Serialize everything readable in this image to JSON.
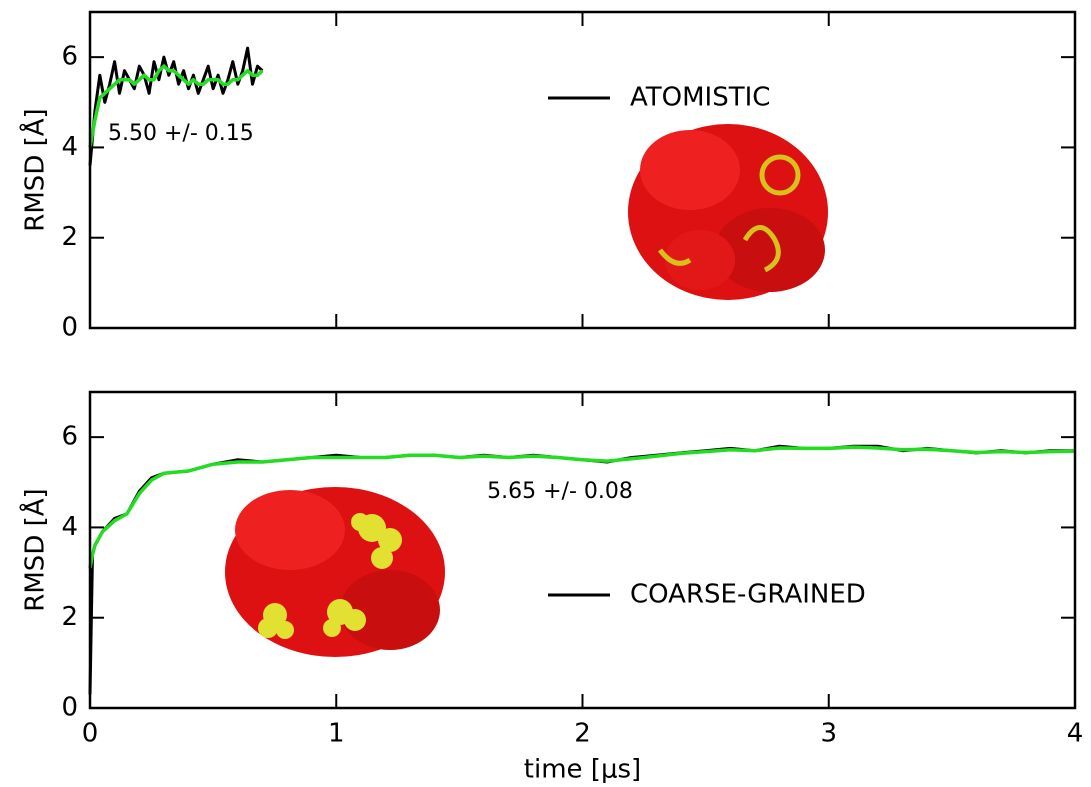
{
  "chart_data": [
    {
      "type": "line",
      "ylabel": "RMSD [Å]",
      "annotation": "5.50 +/- 0.15",
      "xlim": [
        0,
        4
      ],
      "xticks": [
        0,
        1,
        2,
        3,
        4
      ],
      "ylim": [
        0,
        7
      ],
      "yticks": [
        0,
        2,
        4,
        6
      ],
      "x": [
        0,
        0.02,
        0.04,
        0.06,
        0.08,
        0.1,
        0.12,
        0.14,
        0.16,
        0.18,
        0.2,
        0.22,
        0.24,
        0.26,
        0.28,
        0.3,
        0.32,
        0.34,
        0.36,
        0.38,
        0.4,
        0.42,
        0.44,
        0.46,
        0.48,
        0.5,
        0.52,
        0.54,
        0.56,
        0.58,
        0.6,
        0.62,
        0.64,
        0.66,
        0.68,
        0.7
      ],
      "series": [
        {
          "name": "ATOMISTIC",
          "color": "#000000",
          "values": [
            3.6,
            4.8,
            5.6,
            5.0,
            5.4,
            5.9,
            5.2,
            5.7,
            5.5,
            5.3,
            5.8,
            5.6,
            5.2,
            5.9,
            5.5,
            6.0,
            5.6,
            5.9,
            5.4,
            5.7,
            5.3,
            5.6,
            5.2,
            5.5,
            5.8,
            5.3,
            5.6,
            5.2,
            5.5,
            5.9,
            5.4,
            5.7,
            6.2,
            5.4,
            5.8,
            5.7
          ]
        },
        {
          "color": "#22dd22",
          "values": [
            4.0,
            4.6,
            5.1,
            5.2,
            5.3,
            5.4,
            5.5,
            5.5,
            5.5,
            5.4,
            5.5,
            5.6,
            5.5,
            5.5,
            5.7,
            5.8,
            5.7,
            5.7,
            5.6,
            5.5,
            5.4,
            5.5,
            5.4,
            5.4,
            5.5,
            5.5,
            5.5,
            5.4,
            5.4,
            5.5,
            5.5,
            5.6,
            5.7,
            5.6,
            5.6,
            5.7
          ]
        }
      ]
    },
    {
      "type": "line",
      "xlabel": "time [μs]",
      "ylabel": "RMSD [Å]",
      "annotation": "5.65 +/- 0.08",
      "xlim": [
        0,
        4
      ],
      "xticks": [
        0,
        1,
        2,
        3,
        4
      ],
      "ylim": [
        0,
        7
      ],
      "yticks": [
        0,
        2,
        4,
        6
      ],
      "x": [
        0,
        0.01,
        0.02,
        0.05,
        0.1,
        0.15,
        0.2,
        0.25,
        0.3,
        0.4,
        0.5,
        0.6,
        0.7,
        0.8,
        0.9,
        1.0,
        1.1,
        1.2,
        1.3,
        1.4,
        1.5,
        1.6,
        1.7,
        1.8,
        1.9,
        2.0,
        2.1,
        2.2,
        2.3,
        2.4,
        2.5,
        2.6,
        2.7,
        2.8,
        2.9,
        3.0,
        3.1,
        3.2,
        3.3,
        3.4,
        3.5,
        3.6,
        3.7,
        3.8,
        3.9,
        4.0
      ],
      "series": [
        {
          "name": "COARSE-GRAINED",
          "color": "#000000",
          "values": [
            0.3,
            3.4,
            3.6,
            3.9,
            4.2,
            4.3,
            4.8,
            5.1,
            5.2,
            5.25,
            5.4,
            5.5,
            5.45,
            5.5,
            5.55,
            5.6,
            5.55,
            5.55,
            5.6,
            5.6,
            5.55,
            5.6,
            5.55,
            5.6,
            5.55,
            5.5,
            5.45,
            5.55,
            5.6,
            5.65,
            5.7,
            5.75,
            5.7,
            5.8,
            5.75,
            5.75,
            5.8,
            5.8,
            5.7,
            5.75,
            5.7,
            5.65,
            5.7,
            5.65,
            5.7,
            5.7
          ]
        },
        {
          "color": "#22dd22",
          "values": [
            3.1,
            3.4,
            3.6,
            3.9,
            4.15,
            4.3,
            4.75,
            5.05,
            5.2,
            5.25,
            5.4,
            5.45,
            5.45,
            5.5,
            5.55,
            5.55,
            5.55,
            5.55,
            5.6,
            5.6,
            5.55,
            5.58,
            5.55,
            5.58,
            5.55,
            5.5,
            5.47,
            5.52,
            5.58,
            5.64,
            5.68,
            5.72,
            5.7,
            5.76,
            5.75,
            5.75,
            5.78,
            5.76,
            5.72,
            5.73,
            5.7,
            5.66,
            5.68,
            5.66,
            5.68,
            5.69
          ]
        }
      ]
    }
  ]
}
